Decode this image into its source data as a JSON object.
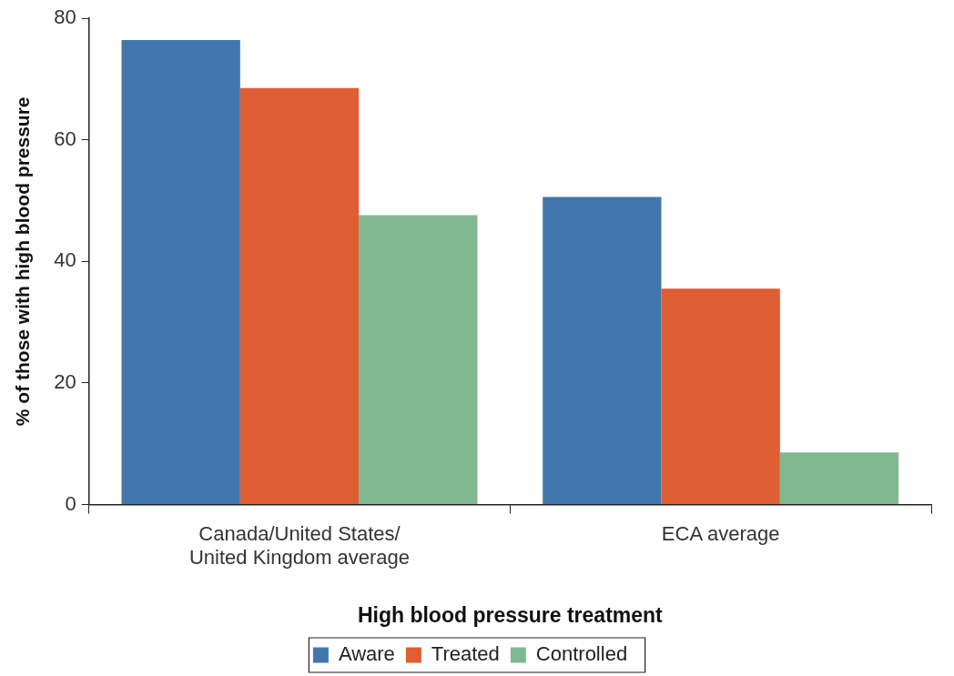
{
  "chart_data": {
    "type": "bar",
    "xlabel": "High blood pressure treatment",
    "ylabel": "% of those with high blood pressure",
    "categories": [
      "Canada/United States/ United Kingdom average",
      "ECA average"
    ],
    "series": [
      {
        "name": "Aware",
        "color": "#4277ad",
        "values": [
          76.4,
          50.6
        ]
      },
      {
        "name": "Treated",
        "color": "#df5e33",
        "values": [
          68.5,
          35.5
        ]
      },
      {
        "name": "Controlled",
        "color": "#80b890",
        "values": [
          47.6,
          8.6
        ]
      }
    ],
    "ylim": [
      0,
      80
    ],
    "yticks": [
      0,
      20,
      40,
      60,
      80
    ],
    "grid": false,
    "legend": "bottom"
  }
}
